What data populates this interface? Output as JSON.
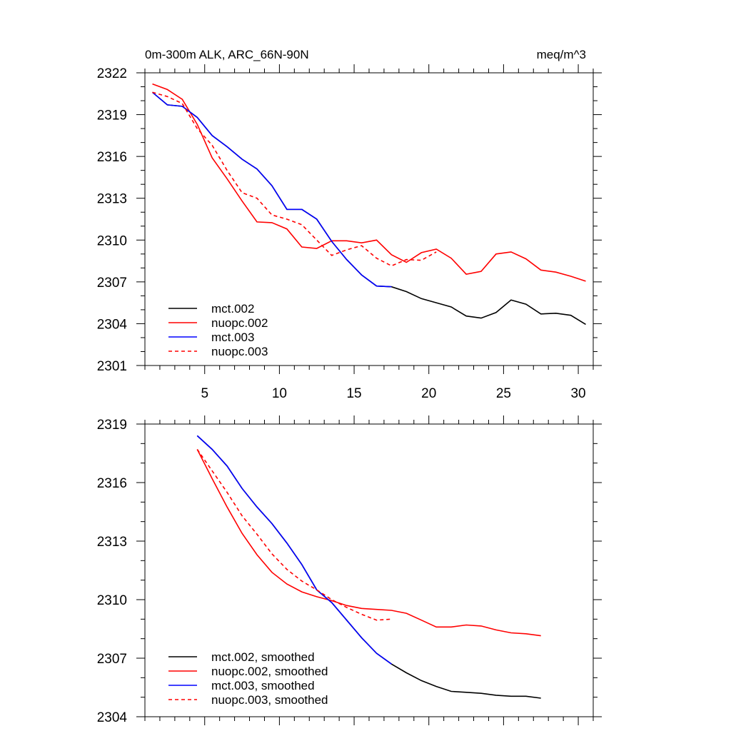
{
  "chart_data": [
    {
      "type": "line",
      "title": "0m-300m ALK, ARC_66N-90N",
      "units": "meq/m^3",
      "ylim": [
        2301,
        2322
      ],
      "xlim": [
        1,
        31
      ],
      "yticks": [
        2301,
        2304,
        2307,
        2310,
        2313,
        2316,
        2319,
        2322
      ],
      "xticks": [
        5,
        10,
        15,
        20,
        25,
        30
      ],
      "legend_position": "bottom-left",
      "series": [
        {
          "name": "mct.002",
          "color": "#000000",
          "dash": "solid",
          "x": [
            1.5,
            2.5,
            3.5,
            4.5,
            5.5,
            6.5,
            7.5,
            8.5,
            9.5,
            10.5,
            11.5,
            12.5,
            13.5,
            14.5,
            15.5,
            16.5,
            17.5,
            18.5,
            19.5,
            20.5,
            21.5,
            22.5,
            23.5,
            24.5,
            25.5,
            26.5,
            27.5,
            28.5,
            29.5,
            30.5
          ],
          "y": [
            2320.6,
            2319.7,
            2319.6,
            2318.8,
            2317.5,
            2316.7,
            2315.8,
            2315.1,
            2313.9,
            2312.2,
            2312.2,
            2311.5,
            2309.9,
            2308.6,
            2307.5,
            2306.7,
            2306.65,
            2306.3,
            2305.8,
            2305.5,
            2305.2,
            2304.55,
            2304.4,
            2304.8,
            2305.7,
            2305.4,
            2304.7,
            2304.75,
            2304.6,
            2303.95
          ]
        },
        {
          "name": "nuopc.002",
          "color": "#ff0000",
          "dash": "solid",
          "x": [
            1.5,
            2.5,
            3.5,
            4.5,
            5.5,
            6.5,
            7.5,
            8.5,
            9.5,
            10.5,
            11.5,
            12.5,
            13.5,
            14.5,
            15.5,
            16.5,
            17.5,
            18.5,
            19.5,
            20.5,
            21.5,
            22.5,
            23.5,
            24.5,
            25.5,
            26.5,
            27.5,
            28.5,
            29.5,
            30.5
          ],
          "y": [
            2321.2,
            2320.8,
            2320.1,
            2318.3,
            2315.9,
            2314.4,
            2312.8,
            2311.3,
            2311.25,
            2310.8,
            2309.5,
            2309.4,
            2309.95,
            2309.95,
            2309.8,
            2310.0,
            2308.95,
            2308.4,
            2309.1,
            2309.35,
            2308.7,
            2307.55,
            2307.75,
            2309.0,
            2309.15,
            2308.65,
            2307.85,
            2307.7,
            2307.4,
            2307.05
          ]
        },
        {
          "name": "mct.003",
          "color": "#0000ff",
          "dash": "solid",
          "x": [
            1.5,
            2.5,
            3.5,
            4.5,
            5.5,
            6.5,
            7.5,
            8.5,
            9.5,
            10.5,
            11.5,
            12.5,
            13.5,
            14.5,
            15.5,
            16.5,
            17.5
          ],
          "y": [
            2320.6,
            2319.7,
            2319.6,
            2318.8,
            2317.5,
            2316.7,
            2315.8,
            2315.1,
            2313.9,
            2312.2,
            2312.2,
            2311.5,
            2309.9,
            2308.6,
            2307.5,
            2306.7,
            2306.65
          ]
        },
        {
          "name": "nuopc.003",
          "color": "#ff0000",
          "dash": "dashed",
          "x": [
            1.5,
            2.5,
            3.5,
            4.5,
            5.5,
            6.5,
            7.5,
            8.5,
            9.5,
            10.5,
            11.5,
            12.5,
            13.5,
            14.5,
            15.5,
            16.5,
            17.5,
            18.5,
            19.5,
            20.5
          ],
          "y": [
            2320.6,
            2320.3,
            2319.8,
            2318.0,
            2316.8,
            2315.0,
            2313.4,
            2313.0,
            2311.8,
            2311.5,
            2311.1,
            2310.0,
            2308.9,
            2309.3,
            2309.6,
            2308.7,
            2308.15,
            2308.6,
            2308.55,
            2309.15
          ]
        }
      ]
    },
    {
      "type": "line",
      "title": "",
      "ylim": [
        2304,
        2319
      ],
      "xlim": [
        1,
        31
      ],
      "yticks": [
        2304,
        2307,
        2310,
        2313,
        2316,
        2319
      ],
      "xticks": [
        5,
        10,
        15,
        20,
        25,
        30
      ],
      "legend_position": "bottom-left",
      "series": [
        {
          "name": "mct.002, smoothed",
          "color": "#000000",
          "dash": "solid",
          "x": [
            4.5,
            5.5,
            6.5,
            7.5,
            8.5,
            9.5,
            10.5,
            11.5,
            12.5,
            13.5,
            14.5,
            15.5,
            16.5,
            17.5,
            18.5,
            19.5,
            20.5,
            21.5,
            22.5,
            23.5,
            24.5,
            25.5,
            26.5,
            27.5
          ],
          "y": [
            2318.4,
            2317.7,
            2316.85,
            2315.7,
            2314.75,
            2313.9,
            2312.9,
            2311.8,
            2310.5,
            2309.85,
            2308.95,
            2308.05,
            2307.25,
            2306.7,
            2306.25,
            2305.85,
            2305.55,
            2305.3,
            2305.25,
            2305.2,
            2305.1,
            2305.05,
            2305.05,
            2304.95
          ]
        },
        {
          "name": "nuopc.002, smoothed",
          "color": "#ff0000",
          "dash": "solid",
          "x": [
            4.5,
            5.5,
            6.5,
            7.5,
            8.5,
            9.5,
            10.5,
            11.5,
            12.5,
            13.5,
            14.5,
            15.5,
            16.5,
            17.5,
            18.5,
            19.5,
            20.5,
            21.5,
            22.5,
            23.5,
            24.5,
            25.5,
            26.5,
            27.5
          ],
          "y": [
            2317.7,
            2316.2,
            2314.75,
            2313.4,
            2312.3,
            2311.4,
            2310.8,
            2310.4,
            2310.15,
            2309.95,
            2309.7,
            2309.55,
            2309.5,
            2309.45,
            2309.3,
            2308.95,
            2308.6,
            2308.6,
            2308.7,
            2308.65,
            2308.45,
            2308.3,
            2308.25,
            2308.15
          ]
        },
        {
          "name": "mct.003, smoothed",
          "color": "#0000ff",
          "dash": "solid",
          "x": [
            4.5,
            5.5,
            6.5,
            7.5,
            8.5,
            9.5,
            10.5,
            11.5,
            12.5,
            13.5,
            14.5,
            15.5,
            16.5,
            17.5
          ],
          "y": [
            2318.4,
            2317.7,
            2316.85,
            2315.7,
            2314.75,
            2313.9,
            2312.9,
            2311.8,
            2310.5,
            2309.85,
            2308.95,
            2308.05,
            2307.25,
            2306.7
          ]
        },
        {
          "name": "nuopc.003, smoothed",
          "color": "#ff0000",
          "dash": "dashed",
          "x": [
            4.5,
            5.5,
            6.5,
            7.5,
            8.5,
            9.5,
            10.5,
            11.5,
            12.5,
            13.5,
            14.5,
            15.5,
            16.5,
            17.5
          ],
          "y": [
            2317.7,
            2316.6,
            2315.5,
            2314.3,
            2313.35,
            2312.35,
            2311.55,
            2310.95,
            2310.5,
            2310.0,
            2309.6,
            2309.25,
            2308.95,
            2309.0
          ]
        }
      ]
    }
  ]
}
